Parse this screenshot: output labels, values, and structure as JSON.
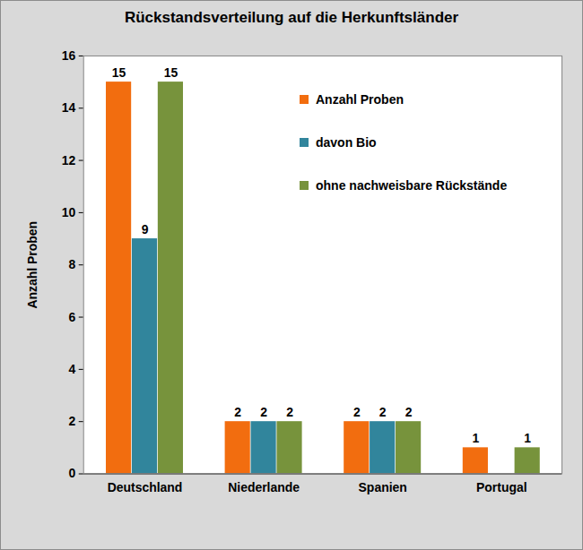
{
  "chart_data": {
    "type": "bar",
    "title": "Rückstandsverteilung auf die Herkunftsländer",
    "y_label": "Anzahl Proben",
    "categories": [
      "Deutschland",
      "Niederlande",
      "Spanien",
      "Portugal"
    ],
    "series": [
      {
        "name": "Anzahl Proben",
        "color": "#f26d0f",
        "values": [
          15,
          2,
          2,
          1
        ]
      },
      {
        "name": "davon Bio",
        "color": "#31859c",
        "values": [
          9,
          2,
          2,
          null
        ]
      },
      {
        "name": "ohne nachweisbare Rückstände",
        "color": "#77933c",
        "values": [
          15,
          2,
          2,
          1
        ]
      }
    ],
    "ylim": [
      0,
      16
    ],
    "yticks": [
      0,
      2,
      4,
      6,
      8,
      10,
      12,
      14,
      16
    ],
    "grid": false,
    "legend": "top-right",
    "data_labels": true
  }
}
